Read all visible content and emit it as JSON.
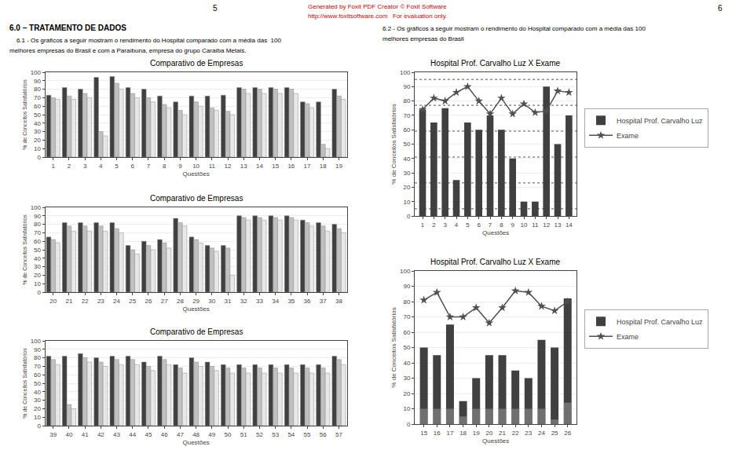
{
  "annotations": [
    {
      "text": "Generated by Foxit PDF Creator © Foxit Software",
      "color": "#cc0000"
    },
    {
      "text": "http://www.foxitsoftware.com   For evaluation only.",
      "color": "#cc0000"
    },
    {
      "text": "5"
    },
    {
      "text": "6"
    },
    {
      "text": "6.0 – TRATAMENTO DE DADOS"
    },
    {
      "text": "    6.1 - Os gráficos a seguir mostram o rendimento do Hospital comparado com a média das  100"
    },
    {
      "text": "melhores empresas do Brasil e com a Paraíbuna, empresa do grupo Caraíba Metais."
    },
    {
      "text": "6.2 - Os gráficos a seguir mostram o rendimento do Hospital comparado com a média das 100"
    },
    {
      "text": "melhores empresas do Brasil"
    }
  ],
  "chart_data": [
    {
      "type": "bar",
      "title": "Comparativo de Empresas",
      "xlabel": "Questões",
      "ylabel": "% de Conceitos Satisfatórios",
      "categories": [
        "1",
        "2",
        "3",
        "4",
        "5",
        "6",
        "7",
        "8",
        "9",
        "10",
        "11",
        "12",
        "13",
        "14",
        "15",
        "16",
        "17",
        "18",
        "19"
      ],
      "series": [
        {
          "color": "#404040",
          "values": [
            73,
            82,
            80,
            94,
            95,
            82,
            80,
            72,
            65,
            72,
            72,
            73,
            82,
            82,
            82,
            82,
            65,
            65,
            80
          ]
        },
        {
          "color": "#c0c0c0",
          "values": [
            70,
            72,
            75,
            30,
            87,
            75,
            70,
            62,
            55,
            65,
            58,
            54,
            80,
            80,
            80,
            80,
            63,
            15,
            72
          ]
        },
        {
          "color": "#e8e8e8",
          "values": [
            68,
            68,
            70,
            25,
            80,
            70,
            65,
            58,
            50,
            60,
            55,
            50,
            75,
            75,
            75,
            75,
            58,
            10,
            68
          ]
        }
      ],
      "ylim": [
        0,
        100
      ],
      "yticks": [
        0,
        10,
        20,
        30,
        40,
        50,
        60,
        70,
        80,
        90,
        100
      ],
      "grid": true
    },
    {
      "type": "bar",
      "title": "Comparativo de Empresas",
      "xlabel": "Questões",
      "ylabel": "% de Conceitos Satisfatórios",
      "categories": [
        "20",
        "21",
        "22",
        "23",
        "24",
        "25",
        "26",
        "27",
        "28",
        "29",
        "30",
        "31",
        "32",
        "33",
        "34",
        "35",
        "36",
        "37",
        "38"
      ],
      "series": [
        {
          "color": "#404040",
          "values": [
            65,
            82,
            82,
            82,
            82,
            55,
            60,
            62,
            87,
            65,
            55,
            55,
            90,
            90,
            90,
            90,
            85,
            82,
            80
          ]
        },
        {
          "color": "#c0c0c0",
          "values": [
            62,
            78,
            78,
            78,
            75,
            50,
            55,
            58,
            82,
            62,
            52,
            52,
            88,
            88,
            88,
            88,
            82,
            78,
            75
          ]
        },
        {
          "color": "#e8e8e8",
          "values": [
            58,
            72,
            72,
            72,
            70,
            45,
            50,
            52,
            78,
            58,
            48,
            20,
            85,
            85,
            85,
            85,
            78,
            72,
            70
          ]
        }
      ],
      "ylim": [
        0,
        100
      ],
      "yticks": [
        0,
        10,
        20,
        30,
        40,
        50,
        60,
        70,
        80,
        90,
        100
      ],
      "grid": true
    },
    {
      "type": "bar",
      "title": "Comparativo de Empresas",
      "xlabel": "Questões",
      "ylabel": "% de Conceitos Satisfatórios",
      "categories": [
        "39",
        "40",
        "41",
        "42",
        "43",
        "44",
        "45",
        "46",
        "47",
        "48",
        "49",
        "50",
        "51",
        "52",
        "53",
        "54",
        "55",
        "56",
        "57"
      ],
      "series": [
        {
          "color": "#404040",
          "values": [
            82,
            82,
            85,
            80,
            82,
            82,
            75,
            82,
            72,
            80,
            75,
            72,
            72,
            72,
            72,
            72,
            72,
            72,
            82
          ]
        },
        {
          "color": "#c0c0c0",
          "values": [
            78,
            25,
            80,
            75,
            78,
            78,
            70,
            78,
            68,
            75,
            70,
            68,
            68,
            68,
            68,
            68,
            68,
            68,
            78
          ]
        },
        {
          "color": "#e8e8e8",
          "values": [
            72,
            20,
            75,
            70,
            72,
            72,
            65,
            72,
            62,
            70,
            65,
            62,
            62,
            62,
            62,
            62,
            62,
            62,
            72
          ]
        }
      ],
      "ylim": [
        0,
        100
      ],
      "yticks": [
        0,
        10,
        20,
        30,
        40,
        50,
        60,
        70,
        80,
        90,
        100
      ],
      "grid": true
    },
    {
      "type": "bar",
      "title": "Hospital Prof. Carvalho Luz X Exame",
      "xlabel": "Questões",
      "ylabel": "% de Conceitos Satisfatórios",
      "x": [
        1,
        2,
        3,
        4,
        5,
        6,
        7,
        8,
        9,
        10,
        11,
        12,
        13,
        14
      ],
      "series": [
        {
          "name": "Hospital Prof. Carvalho Luz",
          "type": "bar",
          "color": "#404040",
          "values": [
            74,
            65,
            75,
            25,
            65,
            60,
            70,
            60,
            40,
            10,
            10,
            90,
            50,
            70
          ]
        },
        {
          "name": "Exame",
          "type": "line",
          "color": "#505050",
          "marker": "star",
          "values": [
            74,
            82,
            80,
            86,
            90,
            80,
            71,
            82,
            71,
            78,
            72,
            73,
            87,
            86
          ]
        }
      ],
      "reference_lines": [
        95,
        77,
        59,
        41,
        23,
        5
      ],
      "xlim": [
        0.3,
        14.7
      ],
      "xticks": [
        1,
        2,
        3,
        4,
        5,
        6,
        7,
        8,
        9,
        10,
        11,
        12,
        13,
        14
      ],
      "ylim": [
        0,
        100
      ],
      "yticks": [
        0,
        10,
        20,
        30,
        40,
        50,
        60,
        70,
        80,
        90,
        100
      ],
      "grid": true,
      "legend": "right"
    },
    {
      "type": "bar",
      "title": "Hospital Prof. Carvalho Luz X Exame",
      "xlabel": "Questões",
      "ylabel": "% de Conceitos Satisfatórios",
      "x": [
        15,
        16,
        17,
        18,
        19,
        20,
        21,
        22,
        23,
        24,
        25,
        26
      ],
      "series": [
        {
          "type": "bar",
          "color": "#a0a0a0",
          "values": [
            10,
            10,
            10,
            5,
            10,
            10,
            10,
            10,
            10,
            10,
            3,
            14
          ]
        },
        {
          "name": "Hospital Prof. Carvalho Luz",
          "type": "bar",
          "color": "#404040",
          "values": [
            50,
            45,
            65,
            15,
            30,
            45,
            45,
            35,
            30,
            55,
            50,
            82
          ]
        },
        {
          "name": "Exame",
          "type": "line",
          "color": "#505050",
          "marker": "star",
          "values": [
            81,
            86,
            70,
            70,
            76,
            66,
            76,
            87,
            86,
            77,
            74,
            80
          ]
        }
      ],
      "xlim": [
        14.3,
        26.7
      ],
      "xticks": [
        15,
        16,
        17,
        18,
        19,
        20,
        21,
        22,
        23,
        24,
        25,
        26
      ],
      "ylim": [
        0,
        100
      ],
      "yticks": [
        0,
        10,
        20,
        30,
        40,
        50,
        60,
        70,
        80,
        90,
        100
      ],
      "grid": true,
      "legend": "right"
    }
  ]
}
